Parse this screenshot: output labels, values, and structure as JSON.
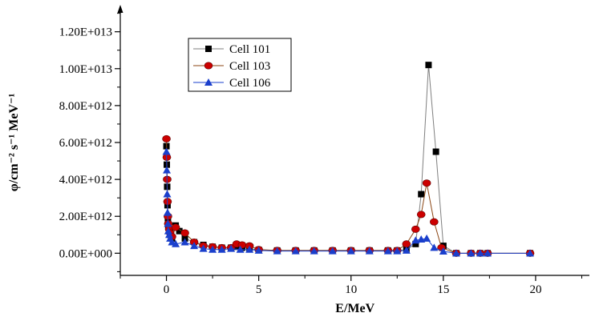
{
  "chart_data": {
    "type": "line",
    "title": "",
    "xlabel": "E/MeV",
    "ylabel": "φ/cm⁻² s⁻¹ MeV⁻¹",
    "xlim": [
      -2.5,
      23
    ],
    "ylim": [
      -1200000000000.0,
      13200000000000.0
    ],
    "x_ticks": [
      0,
      5,
      10,
      15,
      20
    ],
    "x_tick_labels": [
      "0",
      "5",
      "10",
      "15",
      "20"
    ],
    "y_ticks": [
      0,
      2000000000000.0,
      4000000000000.0,
      6000000000000.0,
      8000000000000.0,
      10000000000000.0,
      12000000000000.0
    ],
    "y_tick_labels": [
      "0.00E+000",
      "2.00E+012",
      "4.00E+012",
      "6.00E+012",
      "8.00E+012",
      "1.00E+013",
      "1.20E+013"
    ],
    "grid": false,
    "legend_position": "top-left",
    "series": [
      {
        "name": "Cell 101",
        "color": "#000000",
        "line_color": "#7f7f7f",
        "marker": "square",
        "x": [
          0,
          0.02,
          0.04,
          0.06,
          0.08,
          0.1,
          0.15,
          0.2,
          0.3,
          0.5,
          0.7,
          1.0,
          1.5,
          2.0,
          2.5,
          3.0,
          3.5,
          3.8,
          4.1,
          4.5,
          5.0,
          6.0,
          7.0,
          8.0,
          9.0,
          10.0,
          11.0,
          12.0,
          12.5,
          13.0,
          13.5,
          13.8,
          14.2,
          14.6,
          15.0,
          15.7,
          16.5,
          17.0,
          17.4,
          19.7
        ],
        "y": [
          5800000000000.0,
          4800000000000.0,
          3600000000000.0,
          2600000000000.0,
          1900000000000.0,
          1500000000000.0,
          1200000000000.0,
          1000000000000.0,
          800000000000.0,
          1500000000000.0,
          1200000000000.0,
          800000000000.0,
          600000000000.0,
          450000000000.0,
          350000000000.0,
          300000000000.0,
          300000000000.0,
          350000000000.0,
          300000000000.0,
          250000000000.0,
          180000000000.0,
          150000000000.0,
          150000000000.0,
          150000000000.0,
          150000000000.0,
          150000000000.0,
          150000000000.0,
          150000000000.0,
          150000000000.0,
          200000000000.0,
          500000000000.0,
          3200000000000.0,
          10200000000000.0,
          5500000000000.0,
          400000000000.0,
          0,
          0,
          0,
          0,
          0
        ]
      },
      {
        "name": "Cell 103",
        "color": "#cc0000",
        "line_color": "#8b4513",
        "marker": "circle",
        "x": [
          0,
          0.02,
          0.04,
          0.06,
          0.08,
          0.1,
          0.15,
          0.2,
          0.3,
          0.5,
          1.0,
          1.5,
          2.0,
          2.5,
          3.0,
          3.5,
          3.8,
          4.1,
          4.5,
          5.0,
          6.0,
          7.0,
          8.0,
          9.0,
          10.0,
          11.0,
          12.0,
          12.5,
          13.0,
          13.5,
          13.8,
          14.1,
          14.5,
          14.9,
          15.7,
          16.5,
          17.0,
          17.4,
          19.7
        ],
        "y": [
          6200000000000.0,
          5200000000000.0,
          4000000000000.0,
          2800000000000.0,
          2000000000000.0,
          1600000000000.0,
          1300000000000.0,
          1100000000000.0,
          900000000000.0,
          1400000000000.0,
          1100000000000.0,
          600000000000.0,
          400000000000.0,
          350000000000.0,
          300000000000.0,
          300000000000.0,
          500000000000.0,
          450000000000.0,
          400000000000.0,
          200000000000.0,
          150000000000.0,
          150000000000.0,
          150000000000.0,
          150000000000.0,
          150000000000.0,
          150000000000.0,
          150000000000.0,
          150000000000.0,
          500000000000.0,
          1300000000000.0,
          2100000000000.0,
          3800000000000.0,
          1700000000000.0,
          300000000000.0,
          0,
          0,
          0,
          0,
          0
        ]
      },
      {
        "name": "Cell 106",
        "color": "#1a3fcc",
        "line_color": "#1a3fcc",
        "marker": "triangle",
        "x": [
          0,
          0.02,
          0.04,
          0.06,
          0.08,
          0.1,
          0.15,
          0.2,
          0.3,
          0.5,
          1.0,
          1.5,
          2.0,
          2.5,
          3.0,
          3.5,
          4.0,
          4.5,
          5.0,
          6.0,
          7.0,
          8.0,
          9.0,
          10.0,
          11.0,
          12.0,
          12.5,
          13.0,
          13.5,
          13.8,
          14.1,
          14.5,
          15.0,
          15.7,
          16.5,
          17.0,
          17.4,
          19.7
        ],
        "y": [
          5500000000000.0,
          4500000000000.0,
          3200000000000.0,
          2200000000000.0,
          1600000000000.0,
          1200000000000.0,
          1000000000000.0,
          800000000000.0,
          600000000000.0,
          500000000000.0,
          600000000000.0,
          400000000000.0,
          250000000000.0,
          200000000000.0,
          200000000000.0,
          250000000000.0,
          200000000000.0,
          200000000000.0,
          150000000000.0,
          120000000000.0,
          120000000000.0,
          120000000000.0,
          120000000000.0,
          120000000000.0,
          120000000000.0,
          120000000000.0,
          120000000000.0,
          150000000000.0,
          700000000000.0,
          750000000000.0,
          800000000000.0,
          300000000000.0,
          100000000000.0,
          0,
          0,
          0,
          0,
          0
        ]
      }
    ]
  }
}
